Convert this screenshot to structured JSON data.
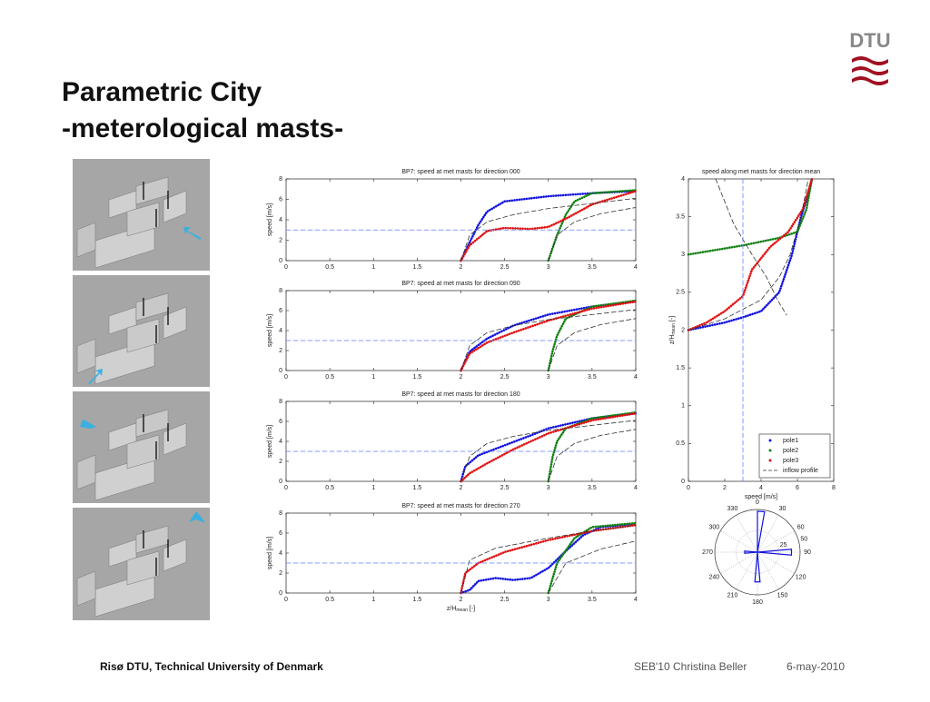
{
  "header": {
    "title_line1": "Parametric City",
    "title_line2": "-meterological masts-",
    "logo": "DTU"
  },
  "footer": {
    "organization": "Risø DTU, Technical University of Denmark",
    "event": "SEB'10 Christina Beller",
    "date": "6-may-2010"
  },
  "chart_data": [
    {
      "type": "line",
      "title": "BP7: speed at met masts for direction 000",
      "ylabel": "speed [m/s]",
      "xlim": [
        0,
        4
      ],
      "ylim": [
        0,
        8
      ],
      "xticks": [
        0,
        0.5,
        1,
        1.5,
        2,
        2.5,
        3,
        3.5,
        4
      ],
      "yticks": [
        0,
        2,
        4,
        6,
        8
      ],
      "series": [
        {
          "color": "#1010e0",
          "style": "dotted",
          "x": [
            2,
            2.1,
            2.2,
            2.3,
            2.5,
            3,
            3.5,
            4
          ],
          "values": [
            0,
            1.8,
            3.5,
            4.8,
            5.8,
            6.3,
            6.6,
            6.8
          ]
        },
        {
          "color": "#108010",
          "style": "dotted",
          "x": [
            3,
            3.1,
            3.2,
            3.3,
            3.5,
            4
          ],
          "values": [
            0,
            2.5,
            4.5,
            5.8,
            6.6,
            6.9
          ]
        },
        {
          "color": "#e01010",
          "style": "dotted",
          "x": [
            2,
            2.1,
            2.3,
            2.5,
            2.8,
            3,
            3.2,
            3.5,
            4
          ],
          "values": [
            0,
            1.5,
            2.9,
            3.2,
            3.1,
            3.3,
            4.1,
            5.5,
            6.8
          ]
        },
        {
          "color": "#333333",
          "style": "dashed",
          "x": [
            2,
            2.1,
            2.3,
            2.6,
            3,
            3.5,
            4
          ],
          "values": [
            0,
            2.5,
            3.8,
            4.5,
            5.1,
            5.6,
            6.1
          ]
        },
        {
          "color": "#333333",
          "style": "dashed",
          "x": [
            3,
            3.1,
            3.3,
            3.6,
            4
          ],
          "values": [
            0,
            2.5,
            3.8,
            4.6,
            5.2
          ]
        },
        {
          "color": "#6080ff",
          "style": "dashed",
          "x": [
            0,
            4
          ],
          "values": [
            3,
            3
          ]
        }
      ]
    },
    {
      "type": "line",
      "title": "BP7: speed at met masts for direction 090",
      "ylabel": "speed [m/s]",
      "xlim": [
        0,
        4
      ],
      "ylim": [
        0,
        8
      ],
      "xticks": [
        0,
        0.5,
        1,
        1.5,
        2,
        2.5,
        3,
        3.5,
        4
      ],
      "yticks": [
        0,
        2,
        4,
        6,
        8
      ],
      "series": [
        {
          "color": "#1010e0",
          "style": "dotted",
          "x": [
            2,
            2.1,
            2.3,
            2.6,
            3,
            3.5,
            4
          ],
          "values": [
            0,
            1.9,
            3.2,
            4.5,
            5.6,
            6.4,
            6.9
          ]
        },
        {
          "color": "#108010",
          "style": "dotted",
          "x": [
            3,
            3.05,
            3.1,
            3.2,
            3.5,
            4
          ],
          "values": [
            0,
            2,
            3.5,
            5.2,
            6.4,
            7
          ]
        },
        {
          "color": "#e01010",
          "style": "dotted",
          "x": [
            2,
            2.1,
            2.3,
            2.6,
            3,
            3.5,
            4
          ],
          "values": [
            0,
            1.7,
            2.8,
            3.8,
            5,
            6.2,
            6.9
          ]
        },
        {
          "color": "#333333",
          "style": "dashed",
          "x": [
            2,
            2.1,
            2.3,
            2.6,
            3,
            3.5,
            4
          ],
          "values": [
            0,
            2.5,
            3.8,
            4.5,
            5.1,
            5.6,
            6.1
          ]
        },
        {
          "color": "#333333",
          "style": "dashed",
          "x": [
            3,
            3.1,
            3.3,
            3.6,
            4
          ],
          "values": [
            0,
            2.5,
            3.8,
            4.6,
            5.2
          ]
        },
        {
          "color": "#6080ff",
          "style": "dashed",
          "x": [
            0,
            4
          ],
          "values": [
            3,
            3
          ]
        }
      ]
    },
    {
      "type": "line",
      "title": "BP7: speed at met masts for direction 180",
      "ylabel": "speed [m/s]",
      "xlim": [
        0,
        4
      ],
      "ylim": [
        0,
        8
      ],
      "xticks": [
        0,
        0.5,
        1,
        1.5,
        2,
        2.5,
        3,
        3.5,
        4
      ],
      "yticks": [
        0,
        2,
        4,
        6,
        8
      ],
      "series": [
        {
          "color": "#1010e0",
          "style": "dotted",
          "x": [
            2,
            2.05,
            2.2,
            2.5,
            2.8,
            3,
            3.5,
            4
          ],
          "values": [
            0,
            1.5,
            2.6,
            3.6,
            4.6,
            5.3,
            6.3,
            6.8
          ]
        },
        {
          "color": "#108010",
          "style": "dotted",
          "x": [
            3,
            3.05,
            3.1,
            3.2,
            3.5,
            4
          ],
          "values": [
            0,
            2.5,
            4,
            5.3,
            6.3,
            6.9
          ]
        },
        {
          "color": "#e01010",
          "style": "dotted",
          "x": [
            2,
            2.1,
            2.3,
            2.6,
            3,
            3.5,
            4
          ],
          "values": [
            0,
            0.8,
            1.8,
            3.2,
            4.8,
            6.1,
            6.8
          ]
        },
        {
          "color": "#333333",
          "style": "dashed",
          "x": [
            2,
            2.1,
            2.3,
            2.6,
            3,
            3.5,
            4
          ],
          "values": [
            0,
            2.5,
            3.8,
            4.5,
            5.1,
            5.6,
            6.1
          ]
        },
        {
          "color": "#333333",
          "style": "dashed",
          "x": [
            3,
            3.1,
            3.3,
            3.6,
            4
          ],
          "values": [
            0,
            2.5,
            3.8,
            4.6,
            5.2
          ]
        },
        {
          "color": "#6080ff",
          "style": "dashed",
          "x": [
            0,
            4
          ],
          "values": [
            3,
            3
          ]
        }
      ]
    },
    {
      "type": "line",
      "title": "BP7: speed at met masts for direction 270",
      "ylabel": "speed [m/s]",
      "xlabel": "z/H",
      "xlabel_sub": "mean",
      "xlabel_unit": "[-]",
      "xlim": [
        0,
        4
      ],
      "ylim": [
        0,
        8
      ],
      "xticks": [
        0,
        0.5,
        1,
        1.5,
        2,
        2.5,
        3,
        3.5,
        4
      ],
      "yticks": [
        0,
        2,
        4,
        6,
        8
      ],
      "series": [
        {
          "color": "#1010e0",
          "style": "dotted",
          "x": [
            2,
            2.1,
            2.2,
            2.4,
            2.6,
            2.8,
            3,
            3.2,
            3.4,
            3.6,
            4
          ],
          "values": [
            0,
            0.3,
            1.2,
            1.5,
            1.3,
            1.5,
            2.5,
            4.2,
            5.8,
            6.6,
            6.9
          ]
        },
        {
          "color": "#108010",
          "style": "dotted",
          "x": [
            3,
            3.1,
            3.3,
            3.5,
            4
          ],
          "values": [
            0,
            3,
            5.5,
            6.6,
            7
          ]
        },
        {
          "color": "#e01010",
          "style": "dotted",
          "x": [
            2,
            2.05,
            2.2,
            2.5,
            3,
            3.5,
            4
          ],
          "values": [
            0,
            2,
            3,
            4.1,
            5.3,
            6.2,
            6.8
          ]
        },
        {
          "color": "#333333",
          "style": "dashed",
          "x": [
            2,
            2.1,
            2.4,
            3,
            3.5,
            4
          ],
          "values": [
            0,
            3.3,
            4.5,
            5.5,
            6.2,
            6.8
          ]
        },
        {
          "color": "#333333",
          "style": "dashed",
          "x": [
            3,
            3.2,
            3.6,
            4
          ],
          "values": [
            0,
            3,
            4.4,
            5.2
          ]
        },
        {
          "color": "#6080ff",
          "style": "dashed",
          "x": [
            0,
            4
          ],
          "values": [
            3,
            3
          ]
        }
      ]
    },
    {
      "type": "line",
      "title": "speed along met masts for direction mean",
      "xlabel": "speed [m/s]",
      "ylabel": "z/H",
      "ylabel_sub": "mean",
      "ylabel_unit": "[-]",
      "xlim": [
        0,
        8
      ],
      "ylim": [
        0,
        4
      ],
      "xticks": [
        0,
        2,
        4,
        6,
        8
      ],
      "yticks": [
        0,
        0.5,
        1,
        1.5,
        2,
        2.5,
        3,
        3.5,
        4
      ],
      "legend": "lower right",
      "series": [
        {
          "name": "pole1",
          "color": "#1010e0",
          "style": "dotted",
          "x": [
            0,
            1,
            2,
            3,
            4,
            5,
            5.7,
            6.2,
            6.6,
            6.8
          ],
          "values": [
            2,
            2.05,
            2.1,
            2.17,
            2.25,
            2.5,
            3,
            3.5,
            3.8,
            4
          ]
        },
        {
          "name": "pole2",
          "color": "#108010",
          "style": "dotted",
          "x": [
            0,
            1,
            2,
            3,
            4,
            5,
            6,
            6.5,
            6.8
          ],
          "values": [
            3,
            3.04,
            3.08,
            3.12,
            3.17,
            3.22,
            3.3,
            3.6,
            4
          ]
        },
        {
          "name": "pole3",
          "color": "#e01010",
          "style": "dotted",
          "x": [
            0,
            1,
            2,
            3,
            3.5,
            4.5,
            5.5,
            6.3,
            6.8
          ],
          "values": [
            2,
            2.1,
            2.25,
            2.45,
            2.8,
            3.1,
            3.3,
            3.6,
            4
          ]
        },
        {
          "name": "inflow profile",
          "color": "#333333",
          "style": "dashed",
          "x": [
            0,
            2,
            4,
            5,
            5.6,
            6.2,
            6.6
          ],
          "values": [
            2,
            2.15,
            2.4,
            2.7,
            3,
            3.5,
            4
          ]
        },
        {
          "color": "#333333",
          "style": "dashed",
          "x": [
            1.5,
            2.5,
            3.5,
            4.3,
            4.9,
            5.4
          ],
          "values": [
            4,
            3.4,
            3,
            2.7,
            2.4,
            2.2
          ]
        },
        {
          "color": "#6080ff",
          "style": "dashed",
          "x": [
            3,
            3
          ],
          "values": [
            0,
            4
          ]
        }
      ]
    },
    {
      "type": "polar",
      "color": "#1010e0",
      "rlim": [
        0,
        50
      ],
      "rticks": [
        25,
        50
      ],
      "thetaticks": [
        0,
        30,
        60,
        90,
        120,
        150,
        180,
        210,
        240,
        270,
        300,
        330
      ],
      "directions": [
        5,
        90,
        180,
        270
      ],
      "values": [
        48,
        40,
        35,
        15
      ]
    }
  ]
}
